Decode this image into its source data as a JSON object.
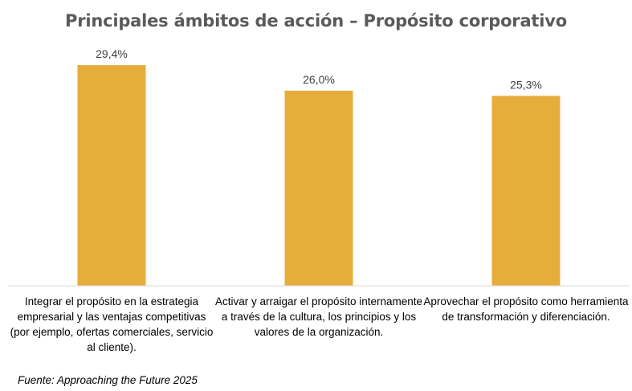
{
  "chart_data": {
    "type": "bar",
    "title": "Principales ámbitos de acción – Propósito corporativo",
    "categories": [
      "Integrar el propósito en la estrategia empresarial y las ventajas competitivas (por ejemplo, ofertas comerciales, servicio al cliente).",
      "Activar y arraigar el propósito internamente a través de la cultura, los principios y los valores de la organización.",
      "Aprovechar el propósito como herramienta de transformación y diferenciación."
    ],
    "values": [
      29.4,
      26.0,
      25.3
    ],
    "data_labels": [
      "29,4%",
      "26,0%",
      "25,3%"
    ],
    "xlabel": "",
    "ylabel": "",
    "grid": false,
    "legend": "none",
    "bar_color": "#e6ad3c",
    "axis_color": "#d9d9d9",
    "source": "Fuente: Approaching the Future 2025"
  }
}
